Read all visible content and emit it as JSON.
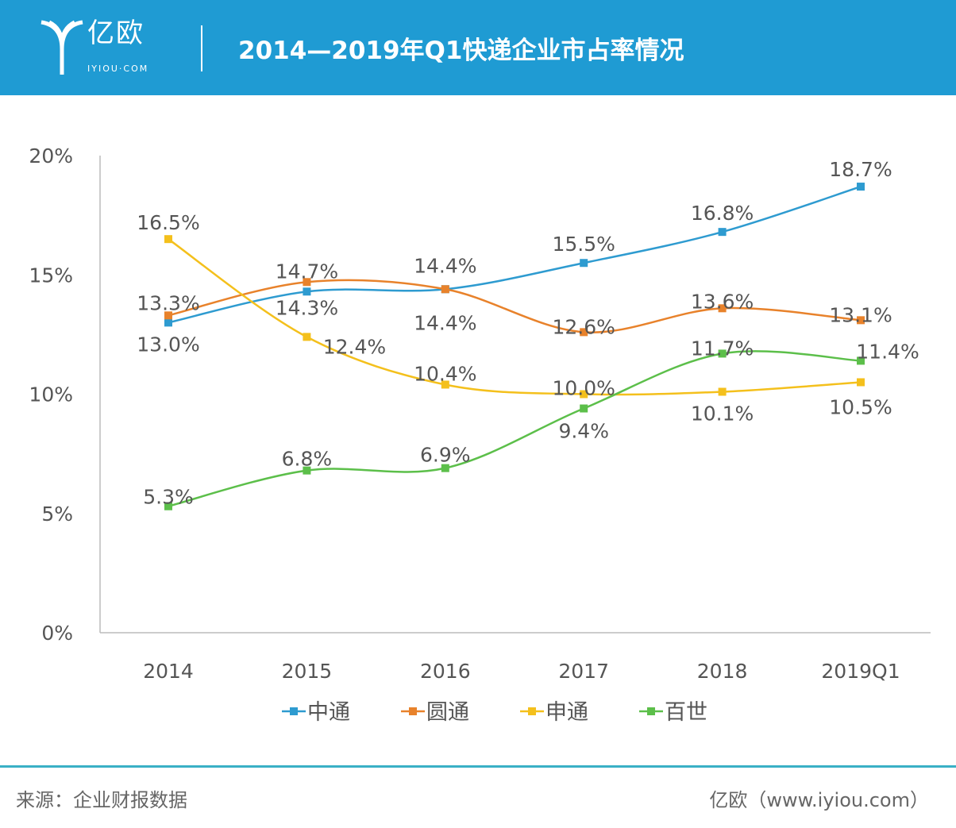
{
  "header": {
    "logo_cn": "亿欧",
    "logo_en": "IYIOU·COM",
    "title": "2014—2019年Q1快递企业市占率情况"
  },
  "footer": {
    "source": "来源：企业财报数据",
    "credit": "亿欧（www.iyiou.com）"
  },
  "chart_data": {
    "type": "line",
    "categories": [
      "2014",
      "2015",
      "2016",
      "2017",
      "2018",
      "2019Q1"
    ],
    "ylim": [
      0,
      20
    ],
    "yticks": [
      "0%",
      "5%",
      "10%",
      "15%",
      "20%"
    ],
    "legend_position": "bottom",
    "series": [
      {
        "name": "中通",
        "color": "#2e9bd0",
        "values": [
          13.0,
          14.3,
          14.4,
          15.5,
          16.8,
          18.7
        ],
        "labels": [
          "13.0%",
          "14.3%",
          "14.4%",
          "15.5%",
          "16.8%",
          "18.7%"
        ]
      },
      {
        "name": "圆通",
        "color": "#e8822b",
        "values": [
          13.3,
          14.7,
          14.4,
          12.6,
          13.6,
          13.1
        ],
        "labels": [
          "13.3%",
          "14.7%",
          "14.4%",
          "12.6%",
          "13.6%",
          "13.1%"
        ]
      },
      {
        "name": "申通",
        "color": "#f4c01c",
        "values": [
          16.5,
          12.4,
          10.4,
          10.0,
          10.1,
          10.5
        ],
        "labels": [
          "16.5%",
          "12.4%",
          "10.4%",
          "10.0%",
          "10.1%",
          "10.5%"
        ]
      },
      {
        "name": "百世",
        "color": "#5cbf4a",
        "values": [
          5.3,
          6.8,
          6.9,
          9.4,
          11.7,
          11.4
        ],
        "labels": [
          "5.3%",
          "6.8%",
          "6.9%",
          "9.4%",
          "11.7%",
          "11.4%"
        ]
      }
    ]
  }
}
